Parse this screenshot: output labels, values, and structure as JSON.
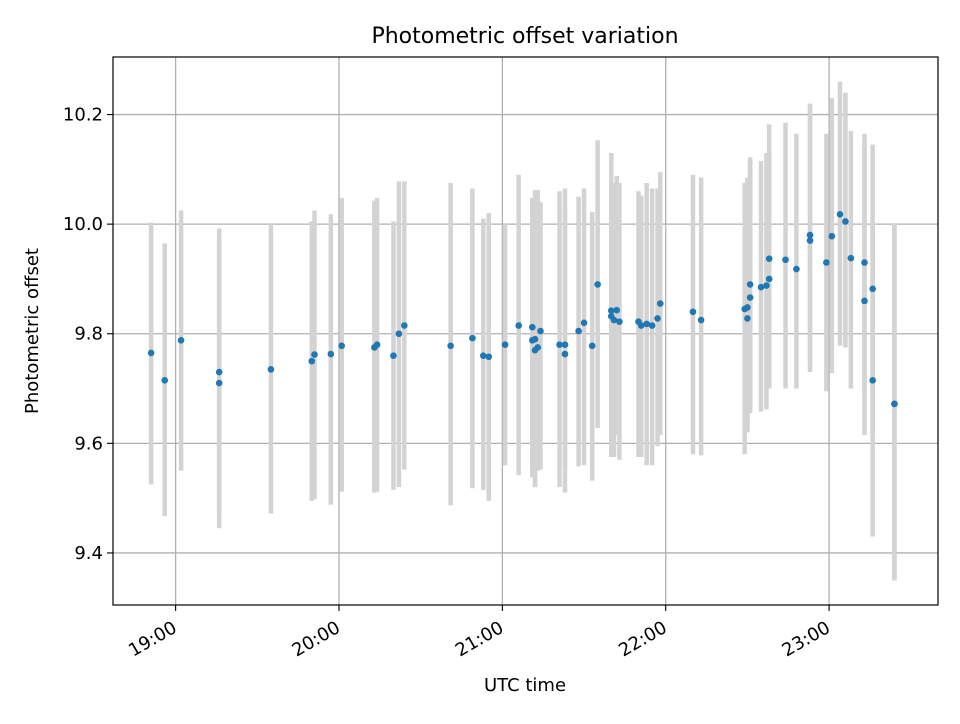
{
  "chart_data": {
    "type": "scatter",
    "title": "Photometric offset variation",
    "xlabel": "UTC time",
    "ylabel": "Photometric offset",
    "xlim": [
      "18:37",
      "23:40"
    ],
    "ylim": [
      9.305,
      10.305
    ],
    "grid": true,
    "x_ticks": [
      "19:00",
      "20:00",
      "21:00",
      "22:00",
      "23:00"
    ],
    "y_ticks": [
      "9.4",
      "9.6",
      "9.8",
      "10.0",
      "10.2"
    ],
    "colors": {
      "point": "#1f77b4",
      "errorbar": "#d3d3d3",
      "grid": "#b0b0b0"
    },
    "series": [
      {
        "x": [
          "18:51",
          "18:56",
          "19:02",
          "19:16",
          "19:16",
          "19:35",
          "19:50",
          "19:51",
          "19:57",
          "20:01",
          "20:13",
          "20:14",
          "20:20",
          "20:22",
          "20:24",
          "20:41",
          "20:49",
          "20:53",
          "20:55",
          "21:01",
          "21:06",
          "21:11",
          "21:11",
          "21:12",
          "21:12",
          "21:13",
          "21:14",
          "21:21",
          "21:23",
          "21:23",
          "21:28",
          "21:30",
          "21:33",
          "21:35",
          "21:40",
          "21:40",
          "21:41",
          "21:42",
          "21:43",
          "21:50",
          "21:51",
          "21:53",
          "21:55",
          "21:57",
          "21:58",
          "22:10",
          "22:13",
          "22:29",
          "22:30",
          "22:30",
          "22:31",
          "22:31",
          "22:35",
          "22:37",
          "22:38",
          "22:38",
          "22:44",
          "22:48",
          "22:53",
          "22:53",
          "22:59",
          "23:01",
          "23:04",
          "23:06",
          "23:08",
          "23:13",
          "23:13",
          "23:16",
          "23:16",
          "23:24",
          "23:24"
        ],
        "y": [
          9.765,
          9.715,
          9.788,
          9.73,
          9.71,
          9.735,
          9.75,
          9.762,
          9.763,
          9.778,
          9.775,
          9.78,
          9.76,
          9.8,
          9.815,
          9.778,
          9.792,
          9.76,
          9.758,
          9.78,
          9.815,
          9.812,
          9.788,
          9.79,
          9.77,
          9.775,
          9.805,
          9.78,
          9.763,
          9.78,
          9.805,
          9.82,
          9.778,
          9.89,
          9.842,
          9.832,
          9.825,
          9.843,
          9.822,
          9.822,
          9.815,
          9.818,
          9.815,
          9.828,
          9.855,
          9.84,
          9.825,
          9.845,
          9.828,
          9.848,
          9.866,
          9.89,
          9.885,
          9.888,
          9.9,
          9.937,
          9.935,
          9.918,
          9.98,
          9.97,
          9.93,
          9.978,
          10.018,
          10.005,
          9.938,
          9.93,
          9.86,
          9.882,
          9.715,
          9.672,
          9.672
        ],
        "yerr_low": [
          9.525,
          9.467,
          9.55,
          9.47,
          9.445,
          9.472,
          9.495,
          9.498,
          9.488,
          9.512,
          9.51,
          9.512,
          9.515,
          9.52,
          9.552,
          9.487,
          9.518,
          9.515,
          9.495,
          9.56,
          9.542,
          9.538,
          9.56,
          9.52,
          9.52,
          9.55,
          9.552,
          9.52,
          9.51,
          9.555,
          9.558,
          9.56,
          9.532,
          9.628,
          9.578,
          9.575,
          9.575,
          9.615,
          9.57,
          9.575,
          9.575,
          9.56,
          9.56,
          9.595,
          9.615,
          9.58,
          9.578,
          9.58,
          9.62,
          9.625,
          9.658,
          9.655,
          9.658,
          9.662,
          9.7,
          9.7,
          9.7,
          9.7,
          9.745,
          9.73,
          9.695,
          9.728,
          9.778,
          9.775,
          9.7,
          9.698,
          9.615,
          9.62,
          9.43,
          9.35,
          9.35
        ],
        "yerr_high": [
          10.003,
          9.965,
          10.025,
          9.992,
          9.978,
          10.0,
          10.005,
          10.025,
          10.018,
          10.048,
          10.043,
          10.048,
          10.005,
          10.078,
          10.078,
          10.075,
          10.065,
          10.01,
          10.02,
          10.0,
          10.09,
          10.048,
          10.04,
          10.018,
          10.062,
          10.062,
          10.04,
          10.06,
          10.03,
          10.065,
          10.05,
          10.065,
          10.022,
          10.153,
          10.13,
          10.11,
          10.075,
          10.088,
          10.075,
          10.06,
          10.052,
          10.075,
          10.065,
          10.065,
          10.095,
          10.09,
          10.085,
          10.075,
          10.085,
          10.075,
          10.122,
          10.118,
          10.115,
          10.13,
          10.13,
          10.182,
          10.185,
          10.165,
          10.22,
          10.215,
          10.165,
          10.23,
          10.26,
          10.24,
          10.17,
          10.165,
          10.145,
          10.145,
          10.005,
          10.0,
          10.0
        ]
      }
    ]
  }
}
